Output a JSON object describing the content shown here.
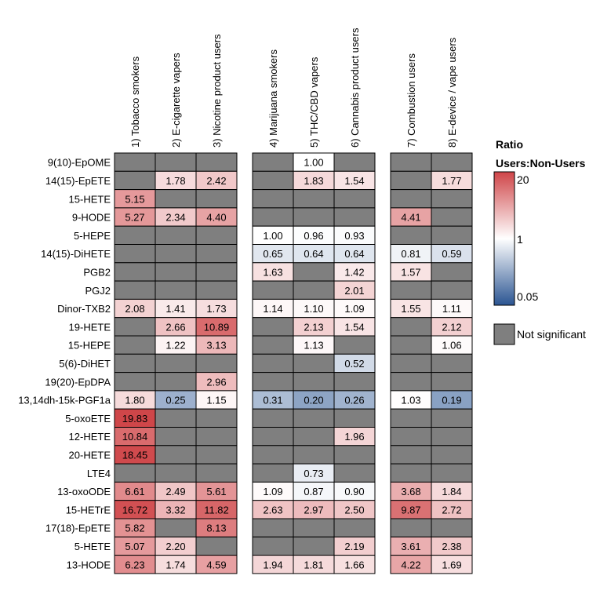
{
  "chart_data": {
    "type": "heatmap",
    "columns": [
      "1) Tobacco smokers",
      "2) E-cigarette vapers",
      "3) Nicotine product users",
      "4) Marijuana smokers",
      "5) THC/CBD vapers",
      "6) Cannabis product users",
      "7) Combustion users",
      "8) E-device / vape users"
    ],
    "column_groups": [
      [
        0,
        1,
        2
      ],
      [
        3,
        4,
        5
      ],
      [
        6,
        7
      ]
    ],
    "rows": [
      "9(10)-EpOME",
      "14(15)-EpETE",
      "15-HETE",
      "9-HODE",
      "5-HEPE",
      "14(15)-DiHETE",
      "PGB2",
      "PGJ2",
      "Dinor-TXB2",
      "19-HETE",
      "15-HEPE",
      "5(6)-DiHET",
      "19(20)-EpDPA",
      "13,14dh-15k-PGF1a",
      "5-oxoETE",
      "12-HETE",
      "20-HETE",
      "LTE4",
      "13-oxoODE",
      "15-HETrE",
      "17(18)-EpETE",
      "5-HETE",
      "13-HODE"
    ],
    "values": [
      [
        null,
        null,
        null,
        null,
        1.0,
        null,
        null,
        null
      ],
      [
        null,
        1.78,
        2.42,
        null,
        1.83,
        1.54,
        null,
        1.77
      ],
      [
        5.15,
        null,
        null,
        null,
        null,
        null,
        null,
        null
      ],
      [
        5.27,
        2.34,
        4.4,
        null,
        null,
        null,
        4.41,
        null
      ],
      [
        null,
        null,
        null,
        1.0,
        0.96,
        0.93,
        null,
        null
      ],
      [
        null,
        null,
        null,
        0.65,
        0.64,
        0.64,
        0.81,
        0.59
      ],
      [
        null,
        null,
        null,
        1.63,
        null,
        1.42,
        1.57,
        null
      ],
      [
        null,
        null,
        null,
        null,
        null,
        2.01,
        null,
        null
      ],
      [
        2.08,
        1.41,
        1.73,
        1.14,
        1.1,
        1.09,
        1.55,
        1.11
      ],
      [
        null,
        2.66,
        10.89,
        null,
        2.13,
        1.54,
        null,
        2.12
      ],
      [
        null,
        1.22,
        3.13,
        null,
        1.13,
        null,
        null,
        1.06
      ],
      [
        null,
        null,
        null,
        null,
        null,
        0.52,
        null,
        null
      ],
      [
        null,
        null,
        2.96,
        null,
        null,
        null,
        null,
        null
      ],
      [
        1.8,
        0.25,
        1.15,
        0.31,
        0.2,
        0.26,
        1.03,
        0.19
      ],
      [
        19.83,
        null,
        null,
        null,
        null,
        null,
        null,
        null
      ],
      [
        10.84,
        null,
        null,
        null,
        null,
        1.96,
        null,
        null
      ],
      [
        18.45,
        null,
        null,
        null,
        null,
        null,
        null,
        null
      ],
      [
        null,
        null,
        null,
        null,
        0.73,
        null,
        null,
        null
      ],
      [
        6.61,
        2.49,
        5.61,
        1.09,
        0.87,
        0.9,
        3.68,
        1.84
      ],
      [
        16.72,
        3.32,
        11.82,
        2.63,
        2.97,
        2.5,
        9.87,
        2.72
      ],
      [
        5.82,
        null,
        8.13,
        null,
        null,
        null,
        null,
        null
      ],
      [
        5.07,
        2.2,
        null,
        null,
        null,
        2.19,
        3.61,
        2.38
      ],
      [
        6.23,
        1.74,
        4.59,
        1.94,
        1.81,
        1.66,
        4.22,
        1.69
      ]
    ],
    "color_scale": {
      "type": "log",
      "min": 0.05,
      "mid": 1,
      "max": 20,
      "min_color": "#2b5592",
      "mid_color": "#ffffff",
      "max_color": "#cf4548"
    },
    "not_significant_color": "#7f7f7f",
    "legend": {
      "title_line1": "Ratio",
      "title_line2": "Users:Non-Users",
      "ticks": [
        "20",
        "1",
        "0.05"
      ],
      "not_significant_label": "Not significant",
      "placement": "right"
    }
  }
}
